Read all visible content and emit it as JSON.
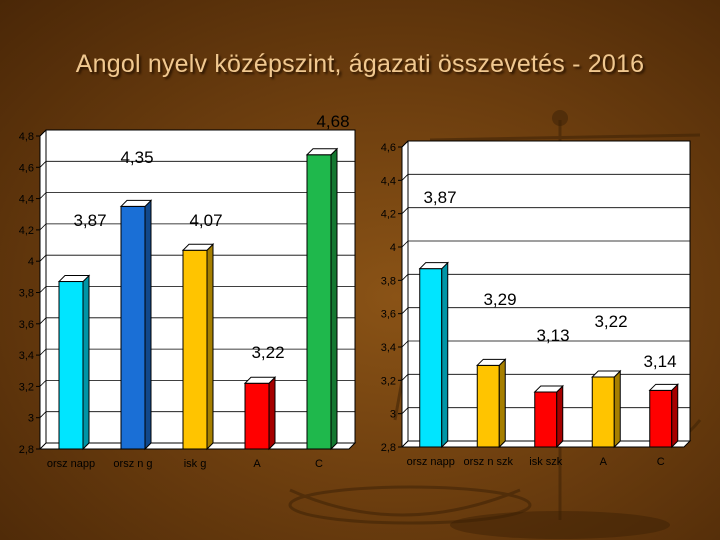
{
  "title": "Angol nyelv középszint, ágazati összevetés - 2016",
  "colors": {
    "cyan": "#00e5ff",
    "green": "#1fb84c",
    "blue": "#1a6fd6",
    "yellow": "#ffc400",
    "red": "#ff0000",
    "plot_bg": "#ffffff",
    "text": "#000000"
  },
  "chart_data": [
    {
      "type": "bar",
      "title": "",
      "xlabel": "",
      "ylabel": "",
      "categories": [
        "orsz napp",
        "orsz n g",
        "isk g",
        "A",
        "C"
      ],
      "values": [
        3.87,
        4.35,
        4.07,
        3.22,
        4.68
      ],
      "value_labels": [
        "3,87",
        "4,35",
        "4,07",
        "3,22",
        "4,68"
      ],
      "bar_colors": [
        "cyan",
        "blue",
        "yellow",
        "red",
        "green"
      ],
      "ylim": [
        2.8,
        4.8
      ],
      "yticks": [
        "2,8",
        "3",
        "3,2",
        "3,4",
        "3,6",
        "3,8",
        "4",
        "4,2",
        "4,4",
        "4,6",
        "4,8"
      ],
      "grid": true,
      "legend": "none"
    },
    {
      "type": "bar",
      "title": "",
      "xlabel": "",
      "ylabel": "",
      "categories": [
        "orsz napp",
        "orsz n szk",
        "isk szk",
        "A",
        "C"
      ],
      "values": [
        3.87,
        3.29,
        3.13,
        3.22,
        3.14
      ],
      "value_labels": [
        "3,87",
        "3,29",
        "3,13",
        "3,22",
        "3,14"
      ],
      "bar_colors": [
        "cyan",
        "yellow",
        "red",
        "yellow",
        "red"
      ],
      "ylim": [
        2.8,
        4.6
      ],
      "yticks": [
        "2,8",
        "3",
        "3,2",
        "3,4",
        "3,6",
        "3,8",
        "4",
        "4,2",
        "4,4",
        "4,6"
      ],
      "grid": true,
      "legend": "none"
    }
  ]
}
